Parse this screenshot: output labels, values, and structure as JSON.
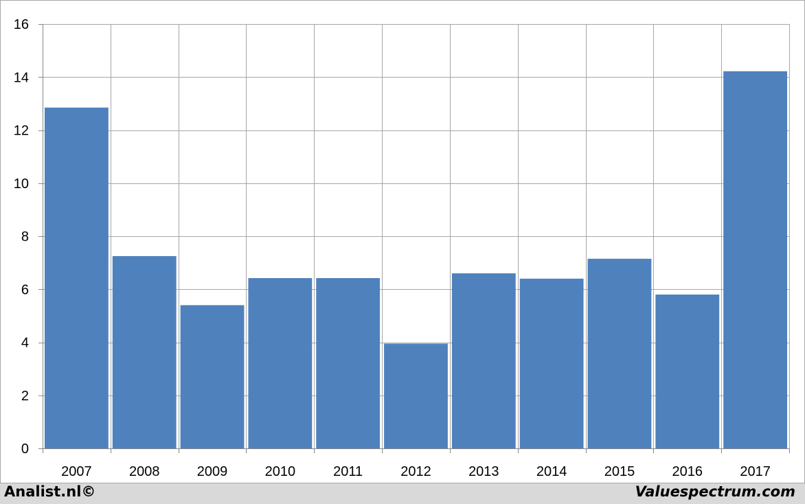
{
  "chart_data": {
    "type": "bar",
    "categories": [
      "2007",
      "2008",
      "2009",
      "2010",
      "2011",
      "2012",
      "2013",
      "2014",
      "2015",
      "2016",
      "2017"
    ],
    "values": [
      12.85,
      7.25,
      5.4,
      6.42,
      6.42,
      3.95,
      6.6,
      6.4,
      7.15,
      5.8,
      14.22
    ],
    "ylim": [
      0,
      16
    ],
    "yticks": [
      0,
      2,
      4,
      6,
      8,
      10,
      12,
      14,
      16
    ],
    "grid": true,
    "bar_color": "#4f81bd",
    "grid_color": "#a6a6a6"
  },
  "footer": {
    "left": "Analist.nl©",
    "right": "Valuespectrum.com"
  }
}
